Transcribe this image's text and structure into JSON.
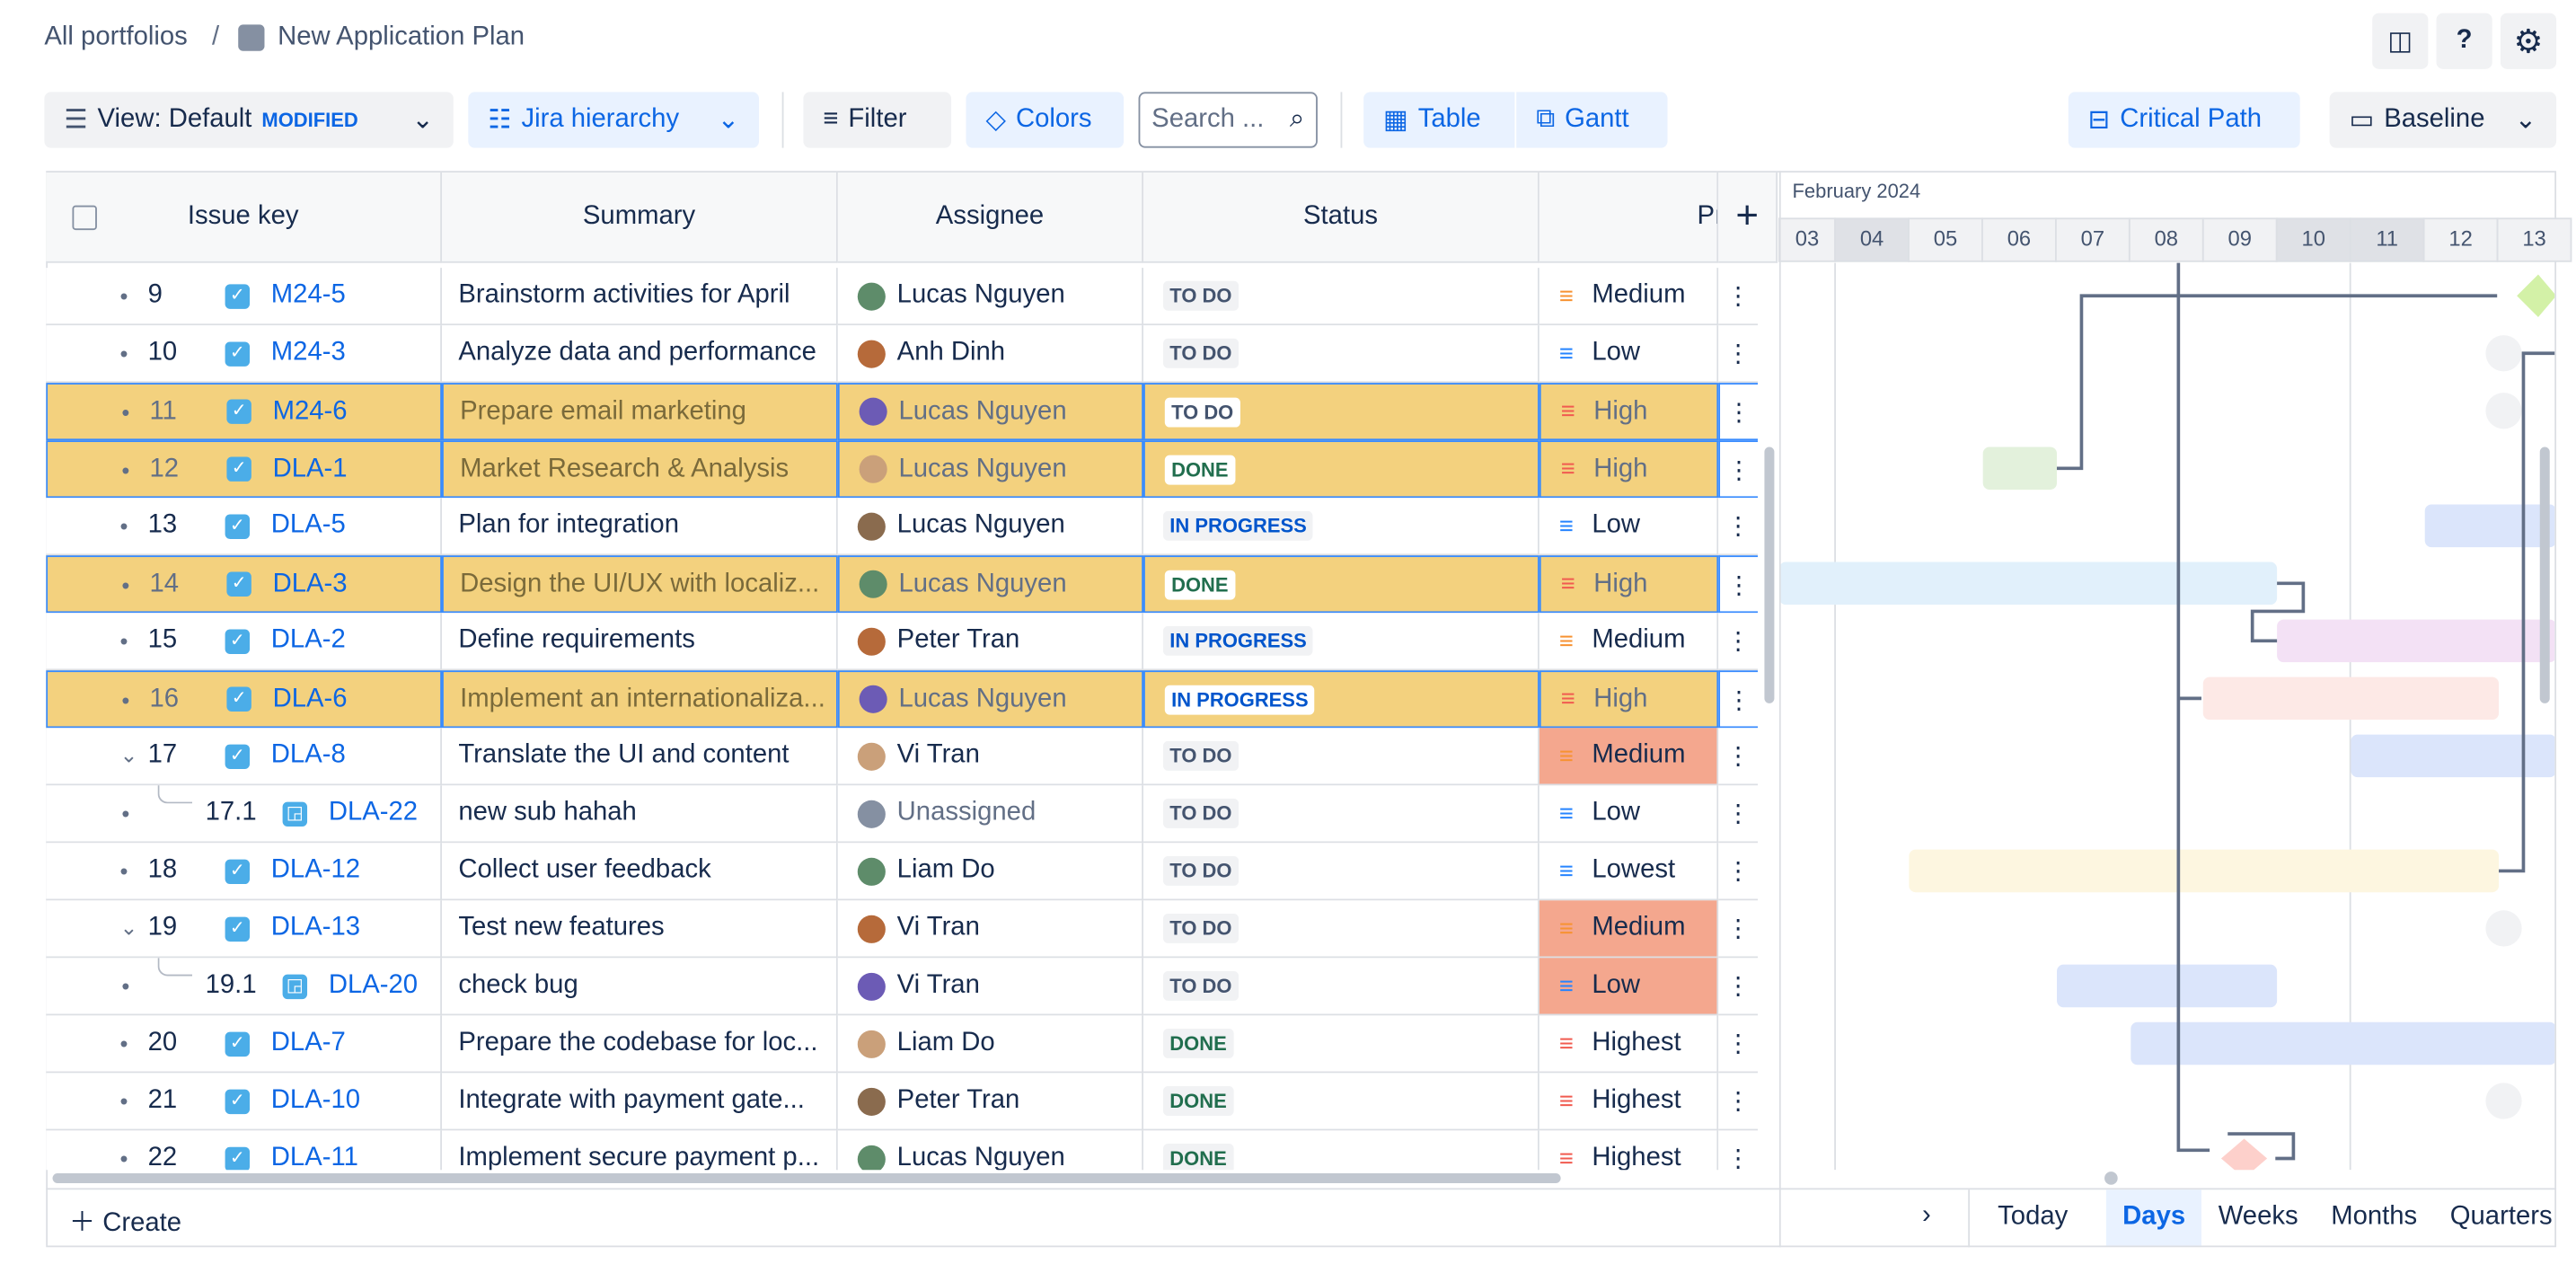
{
  "breadcrumb": {
    "root": "All portfolios",
    "separator": "/",
    "current": "New Application Plan"
  },
  "toolbar": {
    "view": "View: Default",
    "modified": "MODIFIED",
    "hierarchy": "Jira hierarchy",
    "filter": "Filter",
    "colors": "Colors",
    "search_placeholder": "Search ...",
    "table": "Table",
    "gantt": "Gantt",
    "critical_path": "Critical Path",
    "baseline": "Baseline"
  },
  "table": {
    "columns": [
      "Issue key",
      "Summary",
      "Assignee",
      "Status",
      "Pr"
    ],
    "rows": [
      {
        "number": "9",
        "key": "M24-5",
        "summary": "Brainstorm activities for April",
        "assignee": "Lucas Nguyen",
        "status": "TO DO",
        "status_color": "#44546f",
        "priority": "Medium",
        "priority_color": "#f79232"
      },
      {
        "number": "10",
        "key": "M24-3",
        "summary": "Analyze data and performance",
        "assignee": "Anh Dinh",
        "status": "TO DO",
        "status_color": "#44546f",
        "priority": "Low",
        "priority_color": "#2684ff"
      },
      {
        "number": "11",
        "key": "M24-6",
        "summary": "Prepare email marketing",
        "assignee": "Lucas Nguyen",
        "status": "TO DO",
        "status_color": "#44546f",
        "priority": "High",
        "priority_color": "#f15b50",
        "highlighted": true
      },
      {
        "number": "12",
        "key": "DLA-1",
        "summary": "Market Research & Analysis",
        "assignee": "Lucas Nguyen",
        "status": "DONE",
        "status_color": "#216e4e",
        "priority": "High",
        "priority_color": "#f15b50",
        "highlighted": true
      },
      {
        "number": "13",
        "key": "DLA-5",
        "summary": "Plan for integration",
        "assignee": "Lucas Nguyen",
        "status": "IN PROGRESS",
        "status_color": "#0055cc",
        "priority": "Low",
        "priority_color": "#2684ff"
      },
      {
        "number": "14",
        "key": "DLA-3",
        "summary": "Design the UI/UX with localiz...",
        "assignee": "Lucas Nguyen",
        "status": "DONE",
        "status_color": "#216e4e",
        "priority": "High",
        "priority_color": "#f15b50",
        "highlighted": true
      },
      {
        "number": "15",
        "key": "DLA-2",
        "summary": "Define requirements",
        "assignee": "Peter Tran",
        "status": "IN PROGRESS",
        "status_color": "#0055cc",
        "priority": "Medium",
        "priority_color": "#f79232"
      },
      {
        "number": "16",
        "key": "DLA-6",
        "summary": "Implement an internationaliza...",
        "assignee": "Lucas Nguyen",
        "status": "IN PROGRESS",
        "status_color": "#0055cc",
        "priority": "High",
        "priority_color": "#f15b50",
        "highlighted": true
      },
      {
        "number": "17",
        "key": "DLA-8",
        "summary": "Translate the UI and content",
        "assignee": "Vi Tran",
        "status": "TO DO",
        "status_color": "#44546f",
        "priority": "Medium",
        "priority_color": "#f79232",
        "alert": true,
        "expanded": true
      },
      {
        "number": "17.1",
        "key": "DLA-22",
        "summary": "new sub hahah",
        "assignee": "Unassigned",
        "status": "TO DO",
        "status_color": "#44546f",
        "priority": "Low",
        "priority_color": "#2684ff",
        "child": true
      },
      {
        "number": "18",
        "key": "DLA-12",
        "summary": "Collect user feedback",
        "assignee": "Liam Do",
        "status": "TO DO",
        "status_color": "#44546f",
        "priority": "Lowest",
        "priority_color": "#2684ff"
      },
      {
        "number": "19",
        "key": "DLA-13",
        "summary": "Test new features",
        "assignee": "Vi Tran",
        "status": "TO DO",
        "status_color": "#44546f",
        "priority": "Medium",
        "priority_color": "#f79232",
        "alert": true,
        "expanded": true
      },
      {
        "number": "19.1",
        "key": "DLA-20",
        "summary": "check bug",
        "assignee": "Vi Tran",
        "status": "TO DO",
        "status_color": "#44546f",
        "priority": "Low",
        "priority_color": "#2684ff",
        "alert": true,
        "child": true
      },
      {
        "number": "20",
        "key": "DLA-7",
        "summary": "Prepare the codebase for loc...",
        "assignee": "Liam Do",
        "status": "DONE",
        "status_color": "#216e4e",
        "priority": "Highest",
        "priority_color": "#f15b50"
      },
      {
        "number": "21",
        "key": "DLA-10",
        "summary": "Integrate with payment gate...",
        "assignee": "Peter Tran",
        "status": "DONE",
        "status_color": "#216e4e",
        "priority": "Highest",
        "priority_color": "#f15b50"
      },
      {
        "number": "22",
        "key": "DLA-11",
        "summary": "Implement secure payment p...",
        "assignee": "Lucas Nguyen",
        "status": "DONE",
        "status_color": "#216e4e",
        "priority": "Highest",
        "priority_color": "#f15b50"
      }
    ]
  },
  "gantt": {
    "month": "February 2024",
    "days": [
      "03",
      "04",
      "05",
      "06",
      "07",
      "08",
      "09",
      "10",
      "11",
      "12",
      "13"
    ]
  },
  "footer": {
    "create": "Create",
    "today": "Today",
    "scales": [
      "Days",
      "Weeks",
      "Months",
      "Quarters"
    ],
    "active_scale": 0
  }
}
